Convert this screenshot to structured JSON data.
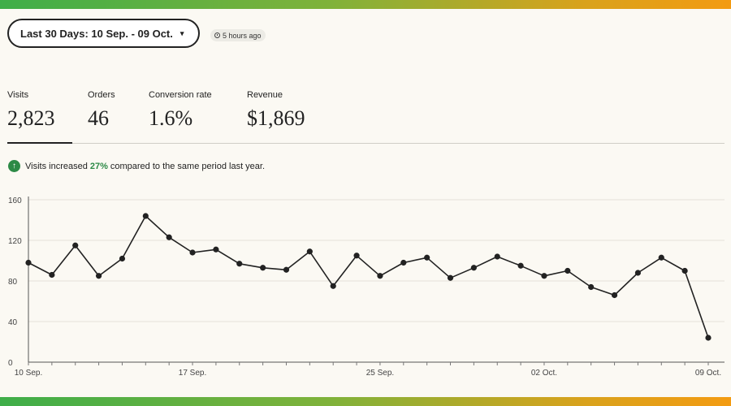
{
  "date_range": {
    "label": "Last 30 Days: 10 Sep. - 09 Oct.",
    "caret": "▾"
  },
  "updated": {
    "label": "5 hours ago"
  },
  "stats": [
    {
      "label": "Visits",
      "value": "2,823"
    },
    {
      "label": "Orders",
      "value": "46"
    },
    {
      "label": "Conversion rate",
      "value": "1.6%"
    },
    {
      "label": "Revenue",
      "value": "$1,869"
    }
  ],
  "notice": {
    "prefix": "Visits increased",
    "percent": "27%",
    "suffix": "compared to the same period last year.",
    "icon": "arrow-up-icon"
  },
  "colors": {
    "accent_green": "#2d8a46",
    "line": "#222222"
  },
  "chart_data": {
    "type": "line",
    "x": [
      "10 Sep.",
      "11 Sep.",
      "12 Sep.",
      "13 Sep.",
      "14 Sep.",
      "15 Sep.",
      "16 Sep.",
      "17 Sep.",
      "18 Sep.",
      "19 Sep.",
      "20 Sep.",
      "21 Sep.",
      "22 Sep.",
      "23 Sep.",
      "24 Sep.",
      "25 Sep.",
      "26 Sep.",
      "27 Sep.",
      "28 Sep.",
      "29 Sep.",
      "30 Sep.",
      "01 Oct.",
      "02 Oct.",
      "03 Oct.",
      "04 Oct.",
      "05 Oct.",
      "06 Oct.",
      "07 Oct.",
      "08 Oct.",
      "09 Oct."
    ],
    "series": [
      {
        "values": [
          98,
          86,
          115,
          85,
          102,
          144,
          123,
          108,
          111,
          97,
          93,
          91,
          109,
          75,
          105,
          85,
          98,
          103,
          83,
          93,
          104,
          95,
          85,
          90,
          74,
          66,
          88,
          103,
          90,
          24
        ]
      }
    ],
    "xticks": [
      "10 Sep.",
      "17 Sep.",
      "25 Sep.",
      "02 Oct.",
      "09 Oct."
    ],
    "yticks": [
      0,
      40,
      80,
      120,
      160
    ],
    "ylim": [
      0,
      160
    ],
    "grid": "horizontal",
    "title": "",
    "xlabel": "",
    "ylabel": ""
  }
}
